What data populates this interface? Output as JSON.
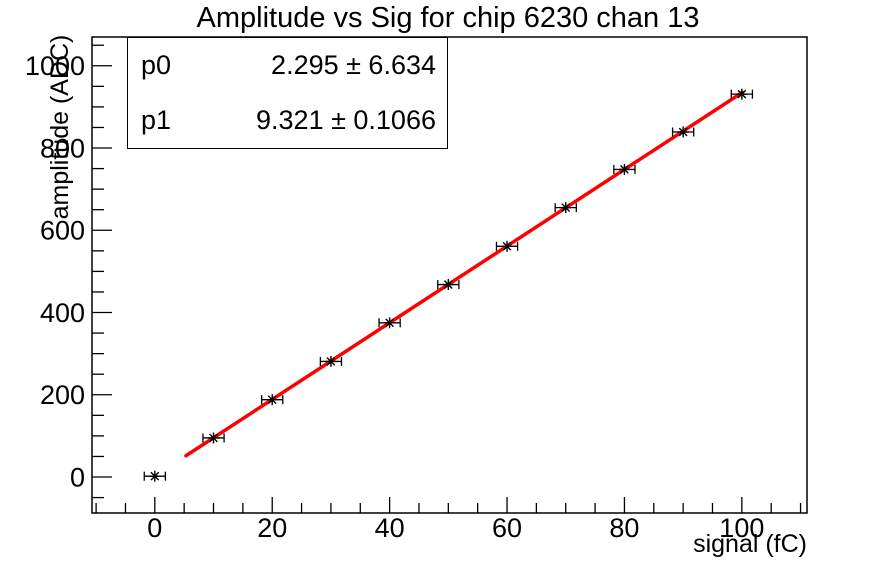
{
  "title": "Amplitude vs Sig for chip 6230 chan 13",
  "stats_box": {
    "rows": [
      {
        "param": "p0",
        "value": "2.295 ± 6.634"
      },
      {
        "param": "p1",
        "value": "9.321 ± 0.1066"
      }
    ]
  },
  "chart_data": {
    "type": "scatter",
    "title": "Amplitude vs Sig for chip 6230 chan 13",
    "xlabel": "signal (fC)",
    "ylabel": "amplitude (ADC)",
    "x": [
      0,
      10,
      20,
      30,
      40,
      50,
      60,
      70,
      80,
      90,
      100
    ],
    "y": [
      2,
      95,
      188,
      281,
      375,
      468,
      561,
      655,
      748,
      839,
      931
    ],
    "x_error": 1.5,
    "xlim": [
      -10.7,
      111.1
    ],
    "ylim": [
      -87.5,
      1070
    ],
    "x_major_ticks": [
      0,
      20,
      40,
      60,
      80,
      100
    ],
    "x_minor_step": 5,
    "y_major_ticks": [
      0,
      200,
      400,
      600,
      800,
      1000
    ],
    "y_minor_step": 50,
    "grid": false,
    "marker": {
      "style": "asterisk",
      "color": "#000000"
    },
    "fit": {
      "type": "linear",
      "p0": 2.295,
      "p1": 9.321,
      "x_start": 5.3,
      "x_end": 100.1,
      "color": "#ff0000",
      "line_width": 3.5
    }
  }
}
